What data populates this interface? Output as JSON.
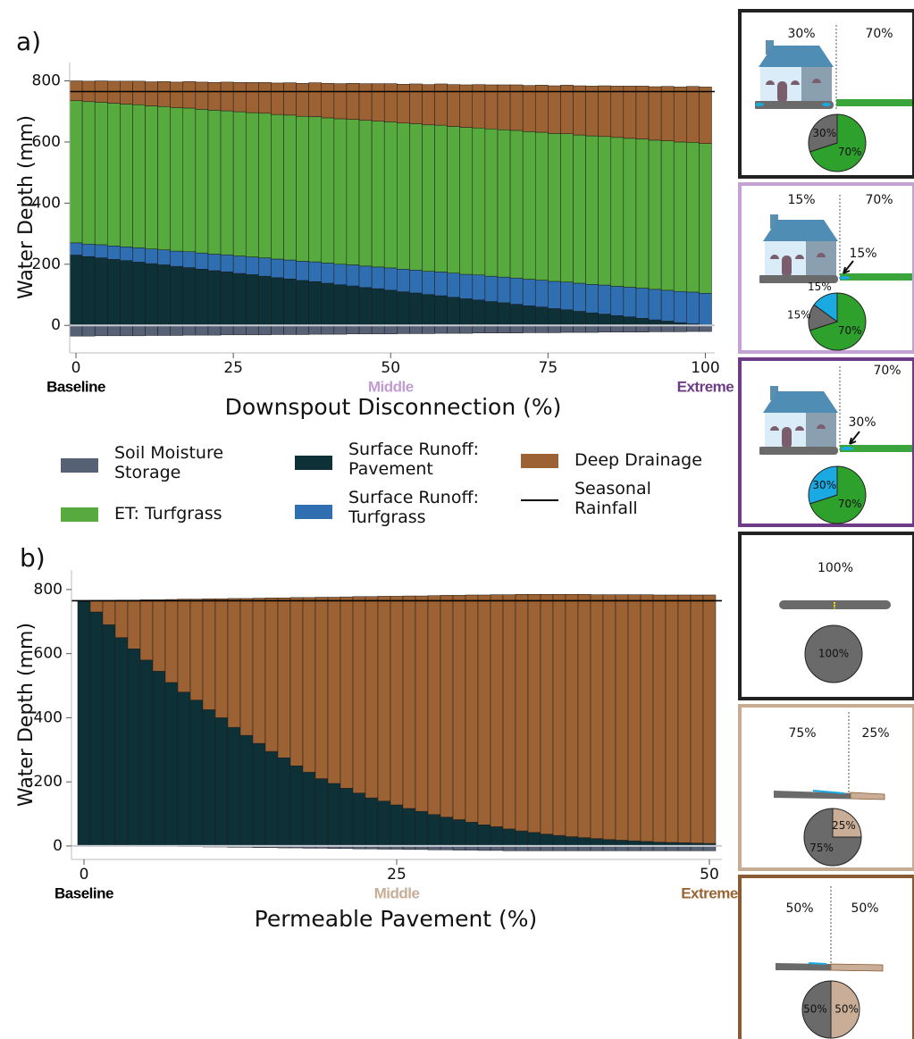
{
  "chart_data": [
    {
      "type": "bar",
      "stacked": true,
      "panel_label": "a)",
      "x_label": "Downspout Disconnection (%)",
      "y_label": "Water Depth (mm)",
      "x": [
        0,
        2,
        4,
        6,
        8,
        10,
        12,
        14,
        16,
        18,
        20,
        22,
        24,
        26,
        28,
        30,
        32,
        34,
        36,
        38,
        40,
        42,
        44,
        46,
        48,
        50,
        52,
        54,
        56,
        58,
        60,
        62,
        64,
        66,
        68,
        70,
        72,
        74,
        76,
        78,
        80,
        82,
        84,
        86,
        88,
        90,
        92,
        94,
        96,
        98,
        100
      ],
      "series": [
        {
          "name": "Soil Moisture Storage",
          "color": "#566176",
          "values": [
            -35,
            -35,
            -34,
            -34,
            -34,
            -34,
            -33,
            -33,
            -33,
            -32,
            -32,
            -32,
            -31,
            -31,
            -31,
            -31,
            -30,
            -30,
            -30,
            -29,
            -29,
            -29,
            -28,
            -28,
            -28,
            -28,
            -27,
            -27,
            -27,
            -26,
            -26,
            -26,
            -25,
            -25,
            -25,
            -25,
            -24,
            -24,
            -24,
            -23,
            -23,
            -23,
            -22,
            -22,
            -22,
            -22,
            -21,
            -21,
            -21,
            -20,
            -20
          ]
        },
        {
          "name": "Surface Runoff: Pavement",
          "color": "#0e3138",
          "values": [
            230,
            225,
            221,
            216,
            212,
            207,
            202,
            198,
            193,
            189,
            184,
            179,
            175,
            170,
            166,
            161,
            156,
            152,
            147,
            143,
            138,
            133,
            129,
            124,
            120,
            115,
            110,
            106,
            101,
            97,
            92,
            87,
            83,
            78,
            74,
            69,
            64,
            60,
            55,
            51,
            46,
            41,
            37,
            32,
            28,
            23,
            18,
            14,
            9,
            5,
            0
          ]
        },
        {
          "name": "Surface Runoff: Turfgrass",
          "color": "#2f6eb0",
          "values": [
            40,
            41,
            43,
            44,
            45,
            47,
            48,
            49,
            50,
            52,
            53,
            54,
            56,
            57,
            58,
            60,
            61,
            62,
            63,
            65,
            66,
            67,
            69,
            70,
            71,
            73,
            74,
            75,
            76,
            78,
            79,
            80,
            82,
            83,
            84,
            86,
            87,
            88,
            89,
            91,
            92,
            93,
            95,
            96,
            97,
            99,
            100,
            101,
            102,
            104,
            105
          ]
        },
        {
          "name": "ET: Turfgrass",
          "color": "#57ab3e",
          "values": [
            465,
            466,
            466,
            467,
            467,
            468,
            468,
            469,
            469,
            470,
            470,
            471,
            471,
            472,
            472,
            473,
            473,
            474,
            474,
            475,
            475,
            476,
            476,
            477,
            477,
            478,
            478,
            479,
            479,
            480,
            480,
            481,
            481,
            482,
            482,
            483,
            483,
            484,
            484,
            485,
            485,
            486,
            486,
            487,
            487,
            488,
            488,
            489,
            489,
            490,
            490
          ]
        },
        {
          "name": "Deep Drainage",
          "color": "#9c6233",
          "values": [
            65,
            67,
            70,
            72,
            75,
            77,
            79,
            82,
            84,
            87,
            89,
            91,
            94,
            96,
            99,
            101,
            103,
            106,
            108,
            111,
            113,
            115,
            118,
            120,
            123,
            125,
            127,
            130,
            132,
            135,
            137,
            139,
            142,
            144,
            147,
            149,
            151,
            154,
            156,
            159,
            161,
            163,
            166,
            168,
            171,
            173,
            175,
            178,
            180,
            183,
            185
          ]
        }
      ],
      "reference_line": {
        "name": "Seasonal Rainfall",
        "value": 765,
        "color": "#000000"
      },
      "xlim": [
        -1,
        101.5
      ],
      "xticks": [
        0,
        25,
        50,
        75,
        100
      ],
      "ylim": [
        -90,
        860
      ],
      "yticks": [
        0,
        200,
        400,
        600,
        800
      ],
      "x_annotations": [
        {
          "label": "Baseline",
          "x": 0,
          "color": "#000000"
        },
        {
          "label": "Middle",
          "x": 50,
          "color": "#c39bd3"
        },
        {
          "label": "Extreme",
          "x": 100,
          "color": "#6e3b86"
        }
      ]
    },
    {
      "type": "bar",
      "stacked": true,
      "panel_label": "b)",
      "x_label": "Permeable Pavement (%)",
      "y_label": "Water Depth (mm)",
      "x": [
        0,
        1,
        2,
        3,
        4,
        5,
        6,
        7,
        8,
        9,
        10,
        11,
        12,
        13,
        14,
        15,
        16,
        17,
        18,
        19,
        20,
        21,
        22,
        23,
        24,
        25,
        26,
        27,
        28,
        29,
        30,
        31,
        32,
        33,
        34,
        35,
        36,
        37,
        38,
        39,
        40,
        41,
        42,
        43,
        44,
        45,
        46,
        47,
        48,
        49,
        50
      ],
      "series": [
        {
          "color": "#566176",
          "values": [
            0,
            0,
            0,
            0,
            0,
            -1,
            -1,
            -1,
            -2,
            -2,
            -3,
            -3,
            -4,
            -4,
            -5,
            -5,
            -6,
            -6,
            -7,
            -7,
            -8,
            -8,
            -9,
            -9,
            -10,
            -10,
            -11,
            -11,
            -12,
            -12,
            -13,
            -13,
            -14,
            -14,
            -15,
            -15,
            -15,
            -15,
            -15,
            -15,
            -15,
            -15,
            -15,
            -15,
            -15,
            -15,
            -15,
            -15,
            -15,
            -15,
            -15
          ]
        },
        {
          "color": "#0e3138",
          "values": [
            765,
            730,
            690,
            650,
            615,
            580,
            545,
            510,
            480,
            455,
            425,
            400,
            370,
            345,
            320,
            295,
            275,
            250,
            230,
            210,
            195,
            180,
            165,
            150,
            140,
            128,
            117,
            108,
            98,
            90,
            82,
            74,
            66,
            60,
            53,
            47,
            42,
            37,
            33,
            29,
            26,
            23,
            20,
            18,
            16,
            14,
            12,
            11,
            10,
            9,
            8
          ]
        },
        {
          "color": "#9c6233",
          "values": [
            0,
            36,
            76,
            117,
            152,
            188,
            223,
            259,
            290,
            315,
            346,
            371,
            402,
            427,
            453,
            479,
            499,
            525,
            545,
            566,
            581,
            597,
            613,
            628,
            639,
            651,
            663,
            672,
            683,
            692,
            700,
            709,
            717,
            724,
            731,
            738,
            743,
            748,
            752,
            756,
            759,
            761,
            764,
            766,
            768,
            770,
            771,
            772,
            773,
            774,
            775
          ]
        }
      ],
      "reference_line": {
        "value": 765,
        "color": "#000000"
      },
      "xlim": [
        -1,
        51
      ],
      "xticks": [
        0,
        25,
        50
      ],
      "ylim": [
        -42,
        861
      ],
      "yticks": [
        0,
        200,
        400,
        600,
        800
      ],
      "x_annotations": [
        {
          "label": "Baseline",
          "x": 0,
          "color": "#000000"
        },
        {
          "label": "Middle",
          "x": 25,
          "color": "#c8ad97"
        },
        {
          "label": "Extreme",
          "x": 50,
          "color": "#9a6433"
        }
      ]
    },
    {
      "type": "pie",
      "values": [
        70,
        30
      ],
      "value_labels": [
        "70%",
        "30%"
      ],
      "colors": [
        "#2ea02c",
        "#6a6a6a"
      ],
      "annotations": [
        "30%",
        "70%"
      ],
      "border": "#222222"
    },
    {
      "type": "pie",
      "values": [
        70,
        15,
        15
      ],
      "value_labels": [
        "70%",
        "15%",
        "15%"
      ],
      "colors": [
        "#2ea02c",
        "#6a6a6a",
        "#1aa9e0"
      ],
      "annotations": [
        "15%",
        "70%",
        "15%"
      ],
      "border": "#c3a3d4"
    },
    {
      "type": "pie",
      "values": [
        70,
        30
      ],
      "value_labels": [
        "70%",
        "30%"
      ],
      "colors": [
        "#2ea02c",
        "#1aa9e0"
      ],
      "annotations": [
        "70%",
        "30%"
      ],
      "border": "#6e3b86"
    },
    {
      "type": "pie",
      "values": [
        100
      ],
      "value_labels": [
        "100%"
      ],
      "colors": [
        "#6a6a6a"
      ],
      "annotations": [
        "100%"
      ],
      "border": "#222222"
    },
    {
      "type": "pie",
      "values": [
        25,
        75
      ],
      "value_labels": [
        "25%",
        "75%"
      ],
      "colors": [
        "#c9ad97",
        "#6a6a6a"
      ],
      "annotations": [
        "75%",
        "25%"
      ],
      "border": "#c7ab93"
    },
    {
      "type": "pie",
      "values": [
        50,
        50
      ],
      "value_labels": [
        "50%",
        "50%"
      ],
      "colors": [
        "#c9ad97",
        "#6a6a6a"
      ],
      "annotations": [
        "50%",
        "50%"
      ],
      "border": "#8a5a32"
    }
  ]
}
